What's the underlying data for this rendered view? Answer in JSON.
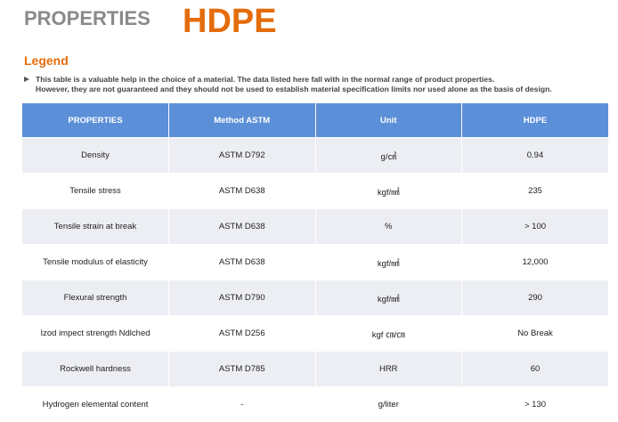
{
  "header": {
    "title": "PROPERTIES",
    "material": "HDPE"
  },
  "legend": {
    "title": "Legend",
    "lines": [
      "This table is a valuable help in the choice of a material. The data listed  here fall with in the normal range of product properties.",
      "However, they are not  guaranteed and they should not be used to establish material specification  limits nor used alone as the basis of design."
    ]
  },
  "table": {
    "columns": [
      "PROPERTIES",
      "Method ASTM",
      "Unit",
      "HDPE"
    ],
    "rows": [
      [
        "Density",
        "ASTM D792",
        "g/㎤",
        "0.94"
      ],
      [
        "Tensile stress",
        "ASTM D638",
        "kgf/㎟",
        "235"
      ],
      [
        "Tensile strain at break",
        "ASTM D638",
        "%",
        "> 100"
      ],
      [
        "Tensile modulus of elasticity",
        "ASTM D638",
        "kgf/㎟",
        "12,000"
      ],
      [
        "Flexural strength",
        "ASTM D790",
        "kgf/㎟",
        "290"
      ],
      [
        "Izod impect strength Ndlched",
        "ASTM D256",
        "kgf ㎝/㎝",
        "No Break"
      ],
      [
        "Rockwell hardness",
        "ASTM D785",
        "HRR",
        "60"
      ],
      [
        "Hydrogen elemental content",
        "-",
        "g/liter",
        "> 130"
      ]
    ]
  }
}
